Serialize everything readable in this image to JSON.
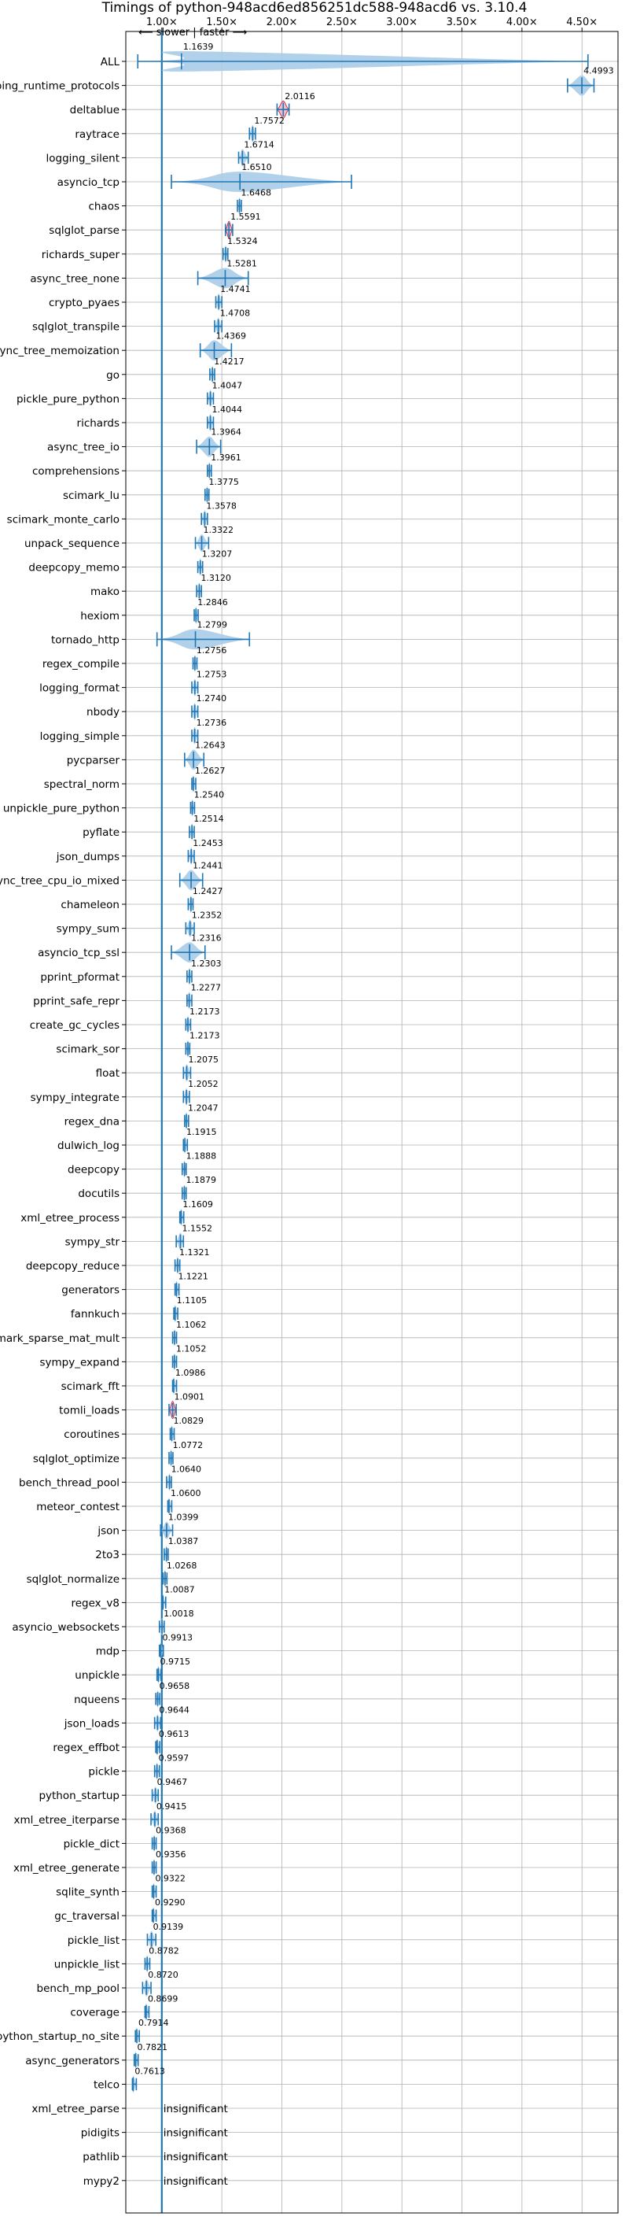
{
  "chart_data": {
    "type": "violin",
    "title": "Timings of python-948acd6ed856251dc588-948acd6 vs. 3.10.4",
    "direction_label": "⟵ slower | faster ⟶",
    "xlim": [
      0.7,
      4.8
    ],
    "x_ticks": [
      1.0,
      1.5,
      2.0,
      2.5,
      3.0,
      3.5,
      4.0,
      4.5
    ],
    "x_tick_labels": [
      "1.00×",
      "1.50×",
      "2.00×",
      "2.50×",
      "3.00×",
      "3.50×",
      "4.00×",
      "4.50×"
    ],
    "reference_line": 1.0,
    "grid": true,
    "insignificant_label": "insignificant",
    "colors": {
      "violin_fill": "#a9cbe8",
      "median_line": "#1f77b4",
      "significant_fill": "#f2b6c6",
      "significant_edge": "#c6334d",
      "grid": "#b0b0b0",
      "axis_line": "#1f77b4"
    },
    "benchmarks": [
      {
        "name": "ALL",
        "value": 1.1639,
        "label": "1.1639",
        "low": 0.8,
        "high": 4.55
      },
      {
        "name": "typing_runtime_protocols",
        "value": 4.4993,
        "label": "4.4993",
        "low": 4.38,
        "high": 4.6
      },
      {
        "name": "deltablue",
        "value": 2.0116,
        "label": "2.0116",
        "low": 1.96,
        "high": 2.06,
        "sig": true
      },
      {
        "name": "raytrace",
        "value": 1.7572,
        "label": "1.7572",
        "low": 1.73,
        "high": 1.78
      },
      {
        "name": "logging_silent",
        "value": 1.6714,
        "label": "1.6714",
        "low": 1.64,
        "high": 1.72
      },
      {
        "name": "asyncio_tcp",
        "value": 1.651,
        "label": "1.6510",
        "low": 1.08,
        "high": 2.58
      },
      {
        "name": "chaos",
        "value": 1.6468,
        "label": "1.6468",
        "low": 1.63,
        "high": 1.66
      },
      {
        "name": "sqlglot_parse",
        "value": 1.5591,
        "label": "1.5591",
        "low": 1.53,
        "high": 1.59,
        "sig": true
      },
      {
        "name": "richards_super",
        "value": 1.5324,
        "label": "1.5324",
        "low": 1.51,
        "high": 1.55
      },
      {
        "name": "async_tree_none",
        "value": 1.5281,
        "label": "1.5281",
        "low": 1.3,
        "high": 1.72
      },
      {
        "name": "crypto_pyaes",
        "value": 1.4741,
        "label": "1.4741",
        "low": 1.45,
        "high": 1.5
      },
      {
        "name": "sqlglot_transpile",
        "value": 1.4708,
        "label": "1.4708",
        "low": 1.44,
        "high": 1.5
      },
      {
        "name": "async_tree_memoization",
        "value": 1.4369,
        "label": "1.4369",
        "low": 1.32,
        "high": 1.58
      },
      {
        "name": "go",
        "value": 1.4217,
        "label": "1.4217",
        "low": 1.4,
        "high": 1.44
      },
      {
        "name": "pickle_pure_python",
        "value": 1.4047,
        "label": "1.4047",
        "low": 1.38,
        "high": 1.43
      },
      {
        "name": "richards",
        "value": 1.4044,
        "label": "1.4044",
        "low": 1.38,
        "high": 1.43
      },
      {
        "name": "async_tree_io",
        "value": 1.3964,
        "label": "1.3964",
        "low": 1.29,
        "high": 1.49
      },
      {
        "name": "comprehensions",
        "value": 1.3961,
        "label": "1.3961",
        "low": 1.38,
        "high": 1.41
      },
      {
        "name": "scimark_lu",
        "value": 1.3775,
        "label": "1.3775",
        "low": 1.36,
        "high": 1.39
      },
      {
        "name": "scimark_monte_carlo",
        "value": 1.3578,
        "label": "1.3578",
        "low": 1.33,
        "high": 1.38
      },
      {
        "name": "unpack_sequence",
        "value": 1.3322,
        "label": "1.3322",
        "low": 1.28,
        "high": 1.39
      },
      {
        "name": "deepcopy_memo",
        "value": 1.3207,
        "label": "1.3207",
        "low": 1.3,
        "high": 1.34
      },
      {
        "name": "mako",
        "value": 1.312,
        "label": "1.3120",
        "low": 1.29,
        "high": 1.33
      },
      {
        "name": "hexiom",
        "value": 1.2846,
        "label": "1.2846",
        "low": 1.27,
        "high": 1.3
      },
      {
        "name": "tornado_http",
        "value": 1.2799,
        "label": "1.2799",
        "low": 0.96,
        "high": 1.73
      },
      {
        "name": "regex_compile",
        "value": 1.2756,
        "label": "1.2756",
        "low": 1.26,
        "high": 1.29
      },
      {
        "name": "logging_format",
        "value": 1.2753,
        "label": "1.2753",
        "low": 1.25,
        "high": 1.3
      },
      {
        "name": "nbody",
        "value": 1.274,
        "label": "1.2740",
        "low": 1.25,
        "high": 1.3
      },
      {
        "name": "logging_simple",
        "value": 1.2736,
        "label": "1.2736",
        "low": 1.25,
        "high": 1.3
      },
      {
        "name": "pycparser",
        "value": 1.2643,
        "label": "1.2643",
        "low": 1.19,
        "high": 1.35
      },
      {
        "name": "spectral_norm",
        "value": 1.2627,
        "label": "1.2627",
        "low": 1.25,
        "high": 1.28
      },
      {
        "name": "unpickle_pure_python",
        "value": 1.254,
        "label": "1.2540",
        "low": 1.24,
        "high": 1.27
      },
      {
        "name": "pyflate",
        "value": 1.2514,
        "label": "1.2514",
        "low": 1.23,
        "high": 1.27
      },
      {
        "name": "json_dumps",
        "value": 1.2453,
        "label": "1.2453",
        "low": 1.22,
        "high": 1.27
      },
      {
        "name": "async_tree_cpu_io_mixed",
        "value": 1.2441,
        "label": "1.2441",
        "low": 1.15,
        "high": 1.34
      },
      {
        "name": "chameleon",
        "value": 1.2427,
        "label": "1.2427",
        "low": 1.22,
        "high": 1.26
      },
      {
        "name": "sympy_sum",
        "value": 1.2352,
        "label": "1.2352",
        "low": 1.2,
        "high": 1.27
      },
      {
        "name": "asyncio_tcp_ssl",
        "value": 1.2316,
        "label": "1.2316",
        "low": 1.08,
        "high": 1.36
      },
      {
        "name": "pprint_pformat",
        "value": 1.2303,
        "label": "1.2303",
        "low": 1.21,
        "high": 1.25
      },
      {
        "name": "pprint_safe_repr",
        "value": 1.2277,
        "label": "1.2277",
        "low": 1.21,
        "high": 1.25
      },
      {
        "name": "create_gc_cycles",
        "value": 1.2173,
        "label": "1.2173",
        "low": 1.2,
        "high": 1.24
      },
      {
        "name": "scimark_sor",
        "value": 1.2173,
        "label": "1.2173",
        "low": 1.2,
        "high": 1.23
      },
      {
        "name": "float",
        "value": 1.2075,
        "label": "1.2075",
        "low": 1.18,
        "high": 1.24
      },
      {
        "name": "sympy_integrate",
        "value": 1.2052,
        "label": "1.2052",
        "low": 1.18,
        "high": 1.23
      },
      {
        "name": "regex_dna",
        "value": 1.2047,
        "label": "1.2047",
        "low": 1.19,
        "high": 1.22
      },
      {
        "name": "dulwich_log",
        "value": 1.1915,
        "label": "1.1915",
        "low": 1.18,
        "high": 1.21
      },
      {
        "name": "deepcopy",
        "value": 1.1888,
        "label": "1.1888",
        "low": 1.17,
        "high": 1.2
      },
      {
        "name": "docutils",
        "value": 1.1879,
        "label": "1.1879",
        "low": 1.17,
        "high": 1.2
      },
      {
        "name": "xml_etree_process",
        "value": 1.1609,
        "label": "1.1609",
        "low": 1.15,
        "high": 1.18
      },
      {
        "name": "sympy_str",
        "value": 1.1552,
        "label": "1.1552",
        "low": 1.12,
        "high": 1.18
      },
      {
        "name": "deepcopy_reduce",
        "value": 1.1321,
        "label": "1.1321",
        "low": 1.11,
        "high": 1.15
      },
      {
        "name": "generators",
        "value": 1.1221,
        "label": "1.1221",
        "low": 1.11,
        "high": 1.14
      },
      {
        "name": "fannkuch",
        "value": 1.1105,
        "label": "1.1105",
        "low": 1.1,
        "high": 1.12
      },
      {
        "name": "scimark_sparse_mat_mult",
        "value": 1.1062,
        "label": "1.1062",
        "low": 1.09,
        "high": 1.12
      },
      {
        "name": "sympy_expand",
        "value": 1.1052,
        "label": "1.1052",
        "low": 1.09,
        "high": 1.12
      },
      {
        "name": "scimark_fft",
        "value": 1.0986,
        "label": "1.0986",
        "low": 1.09,
        "high": 1.11
      },
      {
        "name": "tomli_loads",
        "value": 1.0901,
        "label": "1.0901",
        "low": 1.06,
        "high": 1.12,
        "sig": true
      },
      {
        "name": "coroutines",
        "value": 1.0829,
        "label": "1.0829",
        "low": 1.07,
        "high": 1.09
      },
      {
        "name": "sqlglot_optimize",
        "value": 1.0772,
        "label": "1.0772",
        "low": 1.06,
        "high": 1.09
      },
      {
        "name": "bench_thread_pool",
        "value": 1.064,
        "label": "1.0640",
        "low": 1.04,
        "high": 1.08
      },
      {
        "name": "meteor_contest",
        "value": 1.06,
        "label": "1.0600",
        "low": 1.05,
        "high": 1.07
      },
      {
        "name": "json",
        "value": 1.0399,
        "label": "1.0399",
        "low": 0.99,
        "high": 1.09
      },
      {
        "name": "2to3",
        "value": 1.0387,
        "label": "1.0387",
        "low": 1.02,
        "high": 1.05
      },
      {
        "name": "sqlglot_normalize",
        "value": 1.0268,
        "label": "1.0268",
        "low": 1.01,
        "high": 1.04
      },
      {
        "name": "regex_v8",
        "value": 1.0087,
        "label": "1.0087",
        "low": 1.0,
        "high": 1.02
      },
      {
        "name": "asyncio_websockets",
        "value": 1.0018,
        "label": "1.0018",
        "low": 0.98,
        "high": 1.02
      },
      {
        "name": "mdp",
        "value": 0.9913,
        "label": "0.9913",
        "low": 0.98,
        "high": 1.0
      },
      {
        "name": "unpickle",
        "value": 0.9715,
        "label": "0.9715",
        "low": 0.96,
        "high": 0.99
      },
      {
        "name": "nqueens",
        "value": 0.9658,
        "label": "0.9658",
        "low": 0.95,
        "high": 0.98
      },
      {
        "name": "json_loads",
        "value": 0.9644,
        "label": "0.9644",
        "low": 0.94,
        "high": 0.99
      },
      {
        "name": "regex_effbot",
        "value": 0.9613,
        "label": "0.9613",
        "low": 0.95,
        "high": 0.97
      },
      {
        "name": "pickle",
        "value": 0.9597,
        "label": "0.9597",
        "low": 0.94,
        "high": 0.98
      },
      {
        "name": "python_startup",
        "value": 0.9467,
        "label": "0.9467",
        "low": 0.92,
        "high": 0.97
      },
      {
        "name": "xml_etree_iterparse",
        "value": 0.9415,
        "label": "0.9415",
        "low": 0.91,
        "high": 0.97
      },
      {
        "name": "pickle_dict",
        "value": 0.9368,
        "label": "0.9368",
        "low": 0.92,
        "high": 0.95
      },
      {
        "name": "xml_etree_generate",
        "value": 0.9356,
        "label": "0.9356",
        "low": 0.92,
        "high": 0.95
      },
      {
        "name": "sqlite_synth",
        "value": 0.9322,
        "label": "0.9322",
        "low": 0.92,
        "high": 0.95
      },
      {
        "name": "gc_traversal",
        "value": 0.929,
        "label": "0.9290",
        "low": 0.92,
        "high": 0.94
      },
      {
        "name": "pickle_list",
        "value": 0.9139,
        "label": "0.9139",
        "low": 0.88,
        "high": 0.95
      },
      {
        "name": "unpickle_list",
        "value": 0.8782,
        "label": "0.8782",
        "low": 0.86,
        "high": 0.9
      },
      {
        "name": "bench_mp_pool",
        "value": 0.872,
        "label": "0.8720",
        "low": 0.84,
        "high": 0.91
      },
      {
        "name": "coverage",
        "value": 0.8699,
        "label": "0.8699",
        "low": 0.86,
        "high": 0.88
      },
      {
        "name": "python_startup_no_site",
        "value": 0.7914,
        "label": "0.7914",
        "low": 0.78,
        "high": 0.81
      },
      {
        "name": "async_generators",
        "value": 0.7821,
        "label": "0.7821",
        "low": 0.77,
        "high": 0.8
      },
      {
        "name": "telco",
        "value": 0.7613,
        "label": "0.7613",
        "low": 0.755,
        "high": 0.77
      },
      {
        "name": "xml_etree_parse",
        "insignificant": true
      },
      {
        "name": "pidigits",
        "insignificant": true
      },
      {
        "name": "pathlib",
        "insignificant": true
      },
      {
        "name": "mypy2",
        "insignificant": true
      }
    ]
  }
}
